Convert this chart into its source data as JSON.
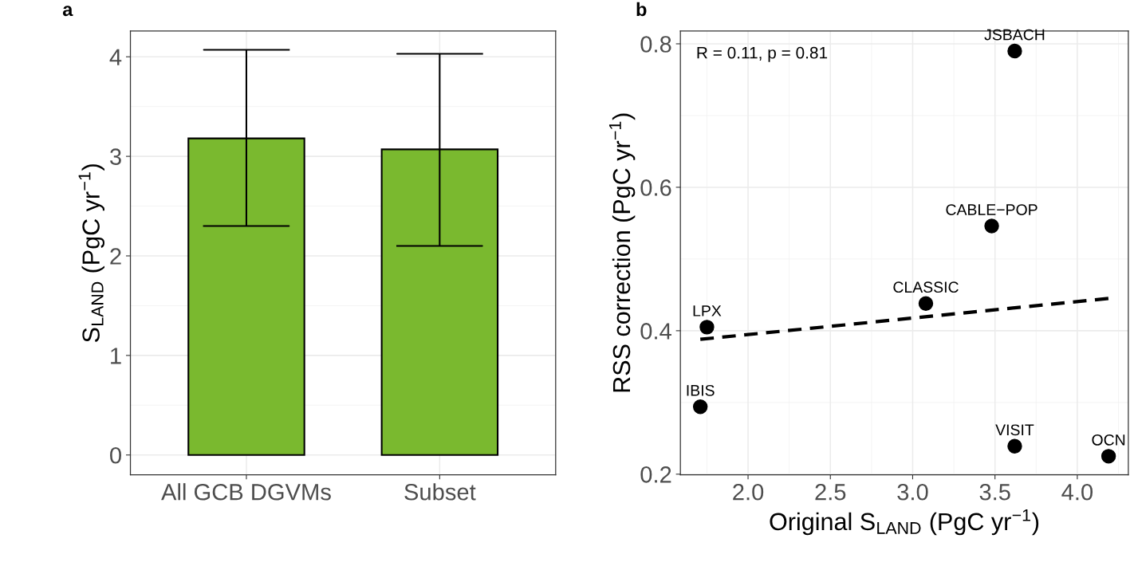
{
  "chart_data": [
    {
      "type": "bar",
      "title": "a",
      "ylabel": "S$_{LAND}$ (PgC yr$^{−1}$)",
      "categories": [
        "All GCB DGVMs",
        "Subset"
      ],
      "values": [
        3.18,
        3.07
      ],
      "errors": [
        [
          2.3,
          4.07
        ],
        [
          2.1,
          4.03
        ]
      ],
      "color": "#7ab92f",
      "ylim": [
        -0.2,
        4.26
      ],
      "yticks": [
        0,
        1,
        2,
        3,
        4
      ],
      "grid": true
    },
    {
      "type": "scatter",
      "title": "b",
      "xlabel": "Original S$_{LAND}$ (PgC yr$^{−1}$)",
      "ylabel": "RSS correction (PgC yr$^{−1}$)",
      "series": [
        {
          "type": "scatter",
          "color": "#000000",
          "marker": "circle",
          "x": [
            3.62,
            3.48,
            3.08,
            1.75,
            1.71,
            3.62,
            4.19
          ],
          "values": [
            0.79,
            0.546,
            0.438,
            0.405,
            0.294,
            0.239,
            0.225
          ]
        },
        {
          "type": "line",
          "color": "#000000",
          "line_style": "dashed",
          "x": [
            1.71,
            4.19
          ],
          "values": [
            0.388,
            0.445
          ]
        }
      ],
      "annotations": [
        "R = 0.11, p = 0.81",
        {
          "text": "JSBACH",
          "x": 3.62,
          "y": 0.79
        },
        {
          "text": "CABLE−POP",
          "x": 3.48,
          "y": 0.546
        },
        {
          "text": "CLASSIC",
          "x": 3.08,
          "y": 0.438
        },
        {
          "text": "LPX",
          "x": 1.75,
          "y": 0.405
        },
        {
          "text": "IBIS",
          "x": 1.71,
          "y": 0.294
        },
        {
          "text": "VISIT",
          "x": 3.62,
          "y": 0.239
        },
        {
          "text": "OCN",
          "x": 4.19,
          "y": 0.225
        }
      ],
      "xlim": [
        1.589,
        4.31
      ],
      "xticks": [
        {
          "value": 2.0,
          "label": "2.0"
        },
        {
          "value": 2.5,
          "label": "2.5"
        },
        {
          "value": 3.0,
          "label": "3.0"
        },
        {
          "value": 3.5,
          "label": "3.5"
        },
        {
          "value": 4.0,
          "label": "4.0"
        }
      ],
      "ylim": [
        0.199,
        0.818
      ],
      "yticks": [
        0.2,
        0.4,
        0.6,
        0.8
      ],
      "grid": true
    }
  ]
}
